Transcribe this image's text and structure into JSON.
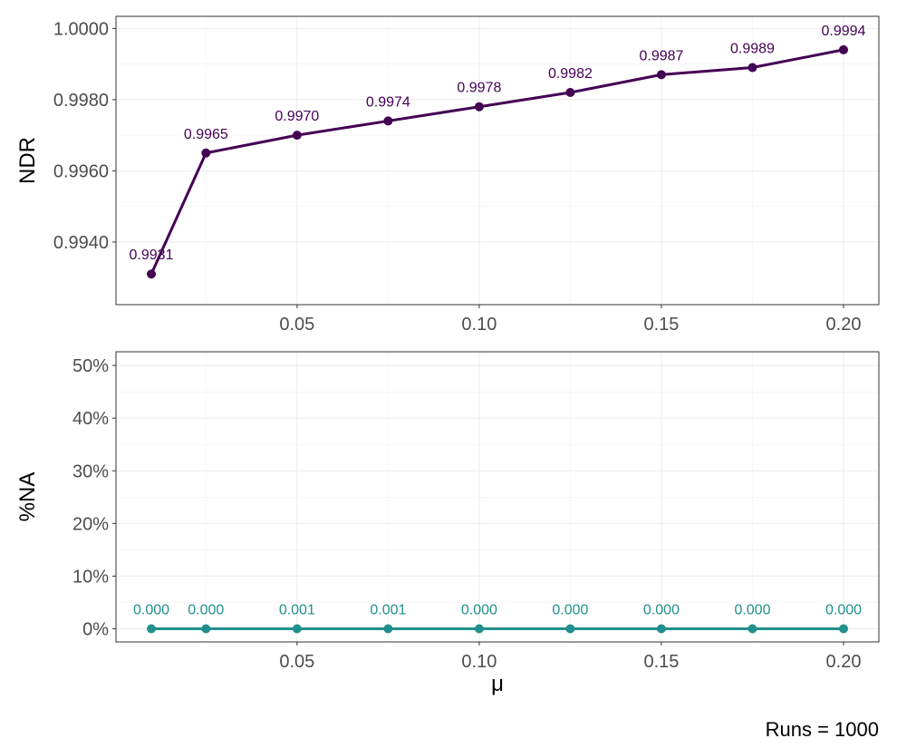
{
  "chart_data": [
    {
      "type": "line",
      "ylabel": "NDR",
      "x": [
        0.01,
        0.025,
        0.05,
        0.075,
        0.1,
        0.125,
        0.15,
        0.175,
        0.2
      ],
      "xticks": [
        {
          "value": 0.05,
          "label": "0.05"
        },
        {
          "value": 0.1,
          "label": "0.10"
        },
        {
          "value": 0.15,
          "label": "0.15"
        },
        {
          "value": 0.2,
          "label": "0.20"
        }
      ],
      "yticks": [
        {
          "value": 0.994,
          "label": "0.9940"
        },
        {
          "value": 0.996,
          "label": "0.9960"
        },
        {
          "value": 0.998,
          "label": "0.9980"
        },
        {
          "value": 1.0,
          "label": "1.0000"
        }
      ],
      "xlim": [
        0.0003,
        0.2097
      ],
      "ylim": [
        0.99224,
        1.00034
      ],
      "grid": true,
      "series": [
        {
          "color": "#440154",
          "values": [
            0.9931,
            0.9965,
            0.997,
            0.9974,
            0.9978,
            0.9982,
            0.9987,
            0.9989,
            0.9994
          ],
          "labels": [
            "0.9931",
            "0.9965",
            "0.9970",
            "0.9974",
            "0.9978",
            "0.9982",
            "0.9987",
            "0.9989",
            "0.9994"
          ]
        }
      ]
    },
    {
      "type": "line",
      "ylabel": "%NA",
      "xlabel": "μ",
      "x": [
        0.01,
        0.025,
        0.05,
        0.075,
        0.1,
        0.125,
        0.15,
        0.175,
        0.2
      ],
      "xticks": [
        {
          "value": 0.05,
          "label": "0.05"
        },
        {
          "value": 0.1,
          "label": "0.10"
        },
        {
          "value": 0.15,
          "label": "0.15"
        },
        {
          "value": 0.2,
          "label": "0.20"
        }
      ],
      "yticks": [
        {
          "value": 0,
          "label": "0%"
        },
        {
          "value": 10,
          "label": "10%"
        },
        {
          "value": 20,
          "label": "20%"
        },
        {
          "value": 30,
          "label": "30%"
        },
        {
          "value": 40,
          "label": "40%"
        },
        {
          "value": 50,
          "label": "50%"
        }
      ],
      "xlim": [
        0.0003,
        0.2097
      ],
      "ylim": [
        -2.5,
        52.6
      ],
      "grid": true,
      "series": [
        {
          "color": "#21908C",
          "values": [
            0.0,
            0.0,
            0.001,
            0.001,
            0.0,
            0.0,
            0.0,
            0.0,
            0.0
          ],
          "labels": [
            "0.000",
            "0.000",
            "0.001",
            "0.001",
            "0.000",
            "0.000",
            "0.000",
            "0.000",
            "0.000"
          ]
        }
      ]
    }
  ],
  "caption": "Runs = 1000"
}
